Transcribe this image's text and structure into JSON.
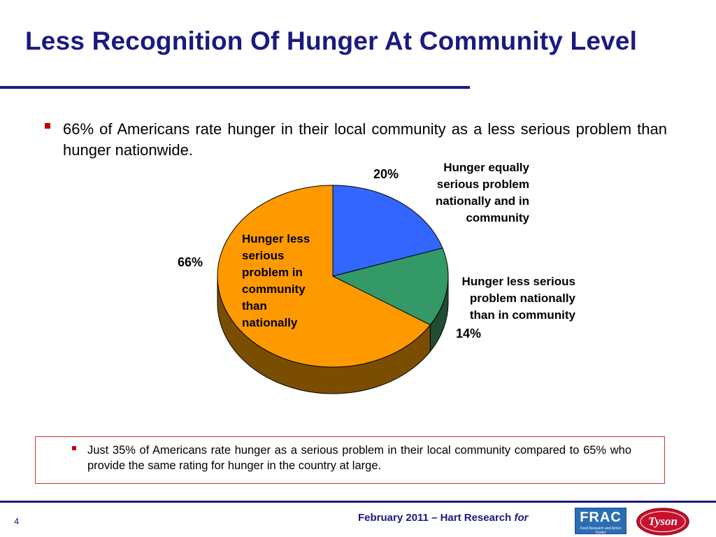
{
  "slide": {
    "title": "Less Recognition Of Hunger At Community Level",
    "bullet1": "66% of Americans rate hunger in their local community as a less serious problem than hunger nationwide.",
    "callout": "Just 35% of Americans rate hunger as a serious problem in their local community compared to 65% who provide the same rating for hunger in the country at large.",
    "page_number": "4",
    "footer": "February 2011 – Hart Research",
    "footer_for": "for",
    "logo_frac": "FRAC",
    "logo_frac_sub": "Food Research and Action Center",
    "logo_tyson": "Tyson"
  },
  "colors": {
    "title": "#1a1a80",
    "bullet": "#c00000",
    "slice_equally": "#3366ff",
    "slice_national": "#339966",
    "slice_community": "#ff9900"
  },
  "chart_data": {
    "type": "pie",
    "style": "3d",
    "series": [
      {
        "label": "Hunger equally serious problem nationally and in community",
        "value": 20,
        "value_label": "20%"
      },
      {
        "label": "Hunger less serious problem nationally than in community",
        "value": 14,
        "value_label": "14%"
      },
      {
        "label": "Hunger less serious problem in community than nationally",
        "value": 66,
        "value_label": "66%"
      }
    ]
  }
}
